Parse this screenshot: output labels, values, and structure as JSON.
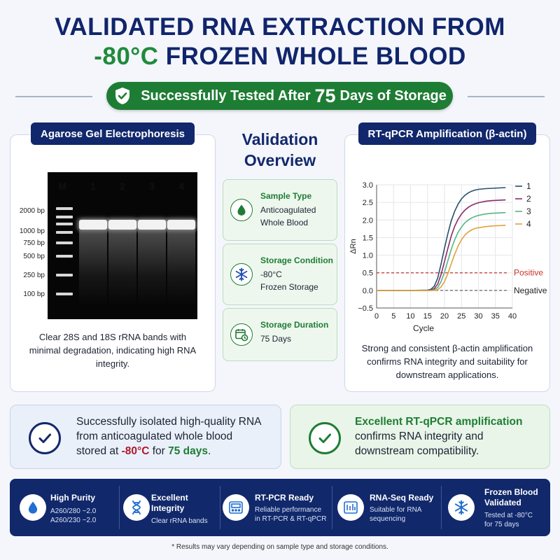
{
  "header": {
    "title_line1": "VALIDATED RNA EXTRACTION FROM",
    "title_line2_accent": "-80°C",
    "title_line2_rest": " FROZEN WHOLE BLOOD",
    "banner_pre": "Successfully Tested After",
    "banner_num": "75",
    "banner_post": "Days of Storage"
  },
  "gel_panel": {
    "heading": "Agarose Gel Electrophoresis",
    "lanes": [
      "M",
      "1",
      "2",
      "3",
      "4"
    ],
    "bp_labels": [
      "2000 bp",
      "1000 bp",
      "750 bp",
      "500 bp",
      "250 bp",
      "100 bp"
    ],
    "caption": "Clear 28S and 18S rRNA bands with minimal degradation, indicating high RNA integrity."
  },
  "overview": {
    "title_line1": "Validation",
    "title_line2": "Overview",
    "items": [
      {
        "head": "Sample Type",
        "line1": "Anticoagulated",
        "line2": "Whole Blood",
        "icon": "drop-icon"
      },
      {
        "head": "Storage Condition",
        "line1": "-80°C",
        "line2": "Frozen Storage",
        "icon": "snowflake-icon"
      },
      {
        "head": "Storage Duration",
        "line1": "75 Days",
        "line2": "",
        "icon": "calendar-clock-icon"
      }
    ]
  },
  "qpcr_panel": {
    "heading": "RT-qPCR Amplification (β-actin)",
    "caption": "Strong and consistent β-actin amplification confirms RNA integrity and suitability for downstream applications."
  },
  "chart_data": {
    "type": "line",
    "xlabel": "Cycle",
    "ylabel": "ΔRn",
    "xlim": [
      0,
      40
    ],
    "ylim": [
      -0.5,
      3.0
    ],
    "x_ticks": [
      0,
      5,
      10,
      15,
      20,
      25,
      30,
      35,
      40
    ],
    "y_ticks": [
      "3.0",
      "2.5",
      "2.0",
      "1.5",
      "1.0",
      "0.5",
      "0.0",
      "−0.5"
    ],
    "grid": true,
    "legend": "top-right",
    "thresholds": [
      {
        "label": "Positive",
        "y": 0.5,
        "color": "#c8322e"
      },
      {
        "label": "Negative",
        "y": 0.0,
        "color": "#666666"
      }
    ],
    "x": [
      0,
      5,
      10,
      15,
      16,
      17,
      18,
      19,
      20,
      21,
      22,
      23,
      24,
      25,
      26,
      27,
      28,
      29,
      30,
      32,
      34,
      36,
      38
    ],
    "series": [
      {
        "name": "1",
        "color": "#27506b",
        "values": [
          0,
          0,
          0,
          0.01,
          0.03,
          0.12,
          0.35,
          0.75,
          1.2,
          1.62,
          1.98,
          2.25,
          2.45,
          2.6,
          2.7,
          2.77,
          2.82,
          2.85,
          2.87,
          2.89,
          2.9,
          2.91,
          2.92
        ]
      },
      {
        "name": "2",
        "color": "#8b2a6a",
        "values": [
          0,
          0,
          0,
          0,
          0.01,
          0.05,
          0.18,
          0.45,
          0.82,
          1.2,
          1.55,
          1.82,
          2.02,
          2.17,
          2.28,
          2.36,
          2.42,
          2.46,
          2.49,
          2.53,
          2.55,
          2.56,
          2.57
        ]
      },
      {
        "name": "3",
        "color": "#56b582",
        "values": [
          0,
          0,
          0,
          0,
          0,
          0.02,
          0.08,
          0.25,
          0.52,
          0.85,
          1.17,
          1.44,
          1.65,
          1.8,
          1.92,
          2.0,
          2.06,
          2.1,
          2.13,
          2.17,
          2.19,
          2.2,
          2.21
        ]
      },
      {
        "name": "4",
        "color": "#e0a23a",
        "values": [
          0,
          0,
          0,
          0,
          0,
          0,
          0.02,
          0.1,
          0.25,
          0.48,
          0.76,
          1.03,
          1.26,
          1.44,
          1.57,
          1.66,
          1.72,
          1.76,
          1.78,
          1.81,
          1.83,
          1.84,
          1.85
        ]
      }
    ]
  },
  "results": {
    "left_line1": "Successfully isolated high-quality RNA",
    "left_line2": "from anticoagulated whole blood",
    "left_line3_pre": "stored at ",
    "left_line3_temp": "-80°C",
    "left_line3_mid": " for ",
    "left_line3_days": "75 days",
    "left_line3_end": ".",
    "right_line1": "Excellent RT-qPCR amplification",
    "right_line2": "confirms RNA integrity and",
    "right_line3": "downstream compatibility."
  },
  "features": [
    {
      "head1": "High Purity",
      "head2": "",
      "v1": "A260/280 ~2.0",
      "v2": "A260/230 ~2.0",
      "icon": "purity-drop-icon"
    },
    {
      "head1": "Excellent",
      "head2": "Integrity",
      "v1": "Clear rRNA bands",
      "v2": "",
      "icon": "dna-icon"
    },
    {
      "head1": "RT-PCR Ready",
      "head2": "",
      "v1": "Reliable performance",
      "v2": "in RT-PCR & RT-qPCR",
      "icon": "pcr-machine-icon"
    },
    {
      "head1": "RNA-Seq Ready",
      "head2": "",
      "v1": "Suitable for RNA",
      "v2": "sequencing",
      "icon": "sequencer-icon"
    },
    {
      "head1": "Frozen Blood",
      "head2": "Validated",
      "v1": "Tested at -80°C",
      "v2": "for 75 days",
      "icon": "snowflake-icon"
    }
  ],
  "footnote": "* Results may vary depending on sample type and storage conditions.",
  "colors": {
    "navy": "#11286b",
    "green": "#1e7d34",
    "accent_green": "#1f8b3c"
  }
}
